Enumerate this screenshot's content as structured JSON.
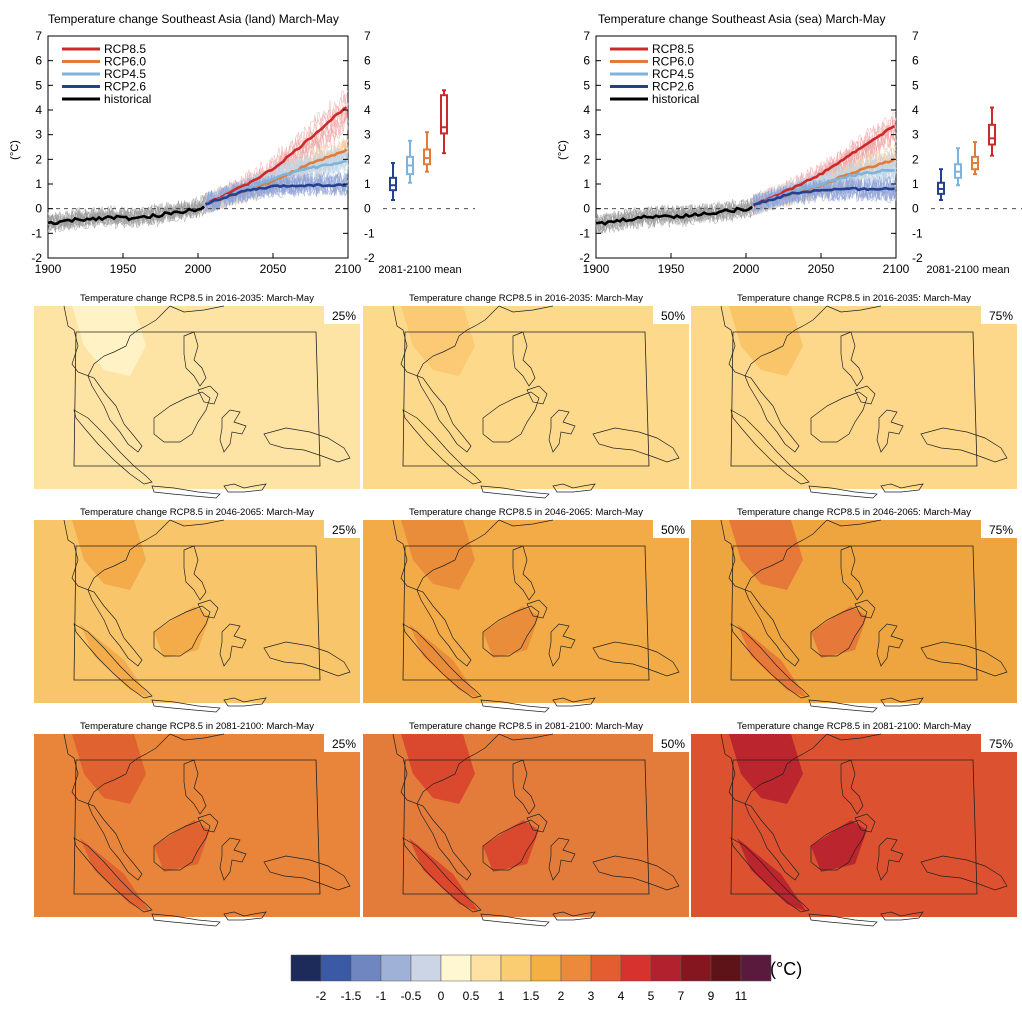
{
  "charts": [
    {
      "id": "land",
      "title": "Temperature change Southeast Asia (land) March-May",
      "ylabel": "(°C)",
      "x_ticks": [
        "1900",
        "1950",
        "2000",
        "2050",
        "2100"
      ],
      "y_ticks": [
        "-2",
        "-1",
        "0",
        "1",
        "2",
        "3",
        "4",
        "5",
        "6",
        "7"
      ],
      "box_label": "2081-2100 mean"
    },
    {
      "id": "sea",
      "title": "Temperature change Southeast Asia (sea) March-May",
      "ylabel": "(°C)",
      "x_ticks": [
        "1900",
        "1950",
        "2000",
        "2050",
        "2100"
      ],
      "y_ticks": [
        "-2",
        "-1",
        "0",
        "1",
        "2",
        "3",
        "4",
        "5",
        "6",
        "7"
      ],
      "box_label": "2081-2100 mean"
    }
  ],
  "legend": [
    {
      "label": "RCP8.5",
      "color": "#cc2a2a"
    },
    {
      "label": "RCP6.0",
      "color": "#e07b39"
    },
    {
      "label": "RCP4.5",
      "color": "#7fb3dc"
    },
    {
      "label": "RCP2.6",
      "color": "#25408f"
    },
    {
      "label": "historical",
      "color": "#000000"
    }
  ],
  "chart_data": [
    {
      "type": "line",
      "title": "Temperature change Southeast Asia (land) March-May",
      "ylabel": "(°C)",
      "xlim": [
        1900,
        2100
      ],
      "ylim": [
        -2,
        7
      ],
      "series": [
        {
          "name": "historical",
          "x": [
            1900,
            1920,
            1940,
            1960,
            1980,
            2000,
            2005
          ],
          "values": [
            -0.6,
            -0.45,
            -0.35,
            -0.4,
            -0.2,
            0.0,
            0.15
          ]
        },
        {
          "name": "RCP8.5",
          "x": [
            2005,
            2030,
            2050,
            2070,
            2100
          ],
          "values": [
            0.2,
            0.9,
            1.6,
            2.6,
            4.2
          ]
        },
        {
          "name": "RCP6.0",
          "x": [
            2005,
            2030,
            2050,
            2070,
            2100
          ],
          "values": [
            0.2,
            0.7,
            1.1,
            1.7,
            2.4
          ]
        },
        {
          "name": "RCP4.5",
          "x": [
            2005,
            2030,
            2050,
            2070,
            2100
          ],
          "values": [
            0.2,
            0.75,
            1.2,
            1.6,
            1.9
          ]
        },
        {
          "name": "RCP2.6",
          "x": [
            2005,
            2030,
            2050,
            2070,
            2100
          ],
          "values": [
            0.2,
            0.7,
            0.9,
            0.95,
            0.95
          ]
        }
      ],
      "boxes": [
        {
          "name": "RCP2.6",
          "min": 0.35,
          "q1": 0.75,
          "median": 0.95,
          "q3": 1.25,
          "max": 1.85
        },
        {
          "name": "RCP4.5",
          "min": 1.05,
          "q1": 1.4,
          "median": 1.75,
          "q3": 2.1,
          "max": 2.75
        },
        {
          "name": "RCP6.0",
          "min": 1.5,
          "q1": 1.8,
          "median": 2.05,
          "q3": 2.4,
          "max": 3.1
        },
        {
          "name": "RCP8.5",
          "min": 2.25,
          "q1": 3.05,
          "median": 3.3,
          "q3": 4.6,
          "max": 4.8
        }
      ]
    },
    {
      "type": "line",
      "title": "Temperature change Southeast Asia (sea) March-May",
      "ylabel": "(°C)",
      "xlim": [
        1900,
        2100
      ],
      "ylim": [
        -2,
        7
      ],
      "series": [
        {
          "name": "historical",
          "x": [
            1900,
            1920,
            1940,
            1960,
            1980,
            2000,
            2005
          ],
          "values": [
            -0.65,
            -0.45,
            -0.3,
            -0.3,
            -0.15,
            0.0,
            0.1
          ]
        },
        {
          "name": "RCP8.5",
          "x": [
            2005,
            2030,
            2050,
            2070,
            2100
          ],
          "values": [
            0.15,
            0.8,
            1.4,
            2.2,
            3.4
          ]
        },
        {
          "name": "RCP6.0",
          "x": [
            2005,
            2030,
            2050,
            2070,
            2100
          ],
          "values": [
            0.15,
            0.6,
            0.95,
            1.45,
            2.0
          ]
        },
        {
          "name": "RCP4.5",
          "x": [
            2005,
            2030,
            2050,
            2070,
            2100
          ],
          "values": [
            0.15,
            0.65,
            1.0,
            1.35,
            1.6
          ]
        },
        {
          "name": "RCP2.6",
          "x": [
            2005,
            2030,
            2050,
            2070,
            2100
          ],
          "values": [
            0.15,
            0.6,
            0.75,
            0.8,
            0.8
          ]
        }
      ],
      "boxes": [
        {
          "name": "RCP2.6",
          "min": 0.35,
          "q1": 0.6,
          "median": 0.8,
          "q3": 1.05,
          "max": 1.6
        },
        {
          "name": "RCP4.5",
          "min": 0.95,
          "q1": 1.25,
          "median": 1.5,
          "q3": 1.8,
          "max": 2.45
        },
        {
          "name": "RCP6.0",
          "min": 1.4,
          "q1": 1.6,
          "median": 1.85,
          "q3": 2.1,
          "max": 2.7
        },
        {
          "name": "RCP8.5",
          "min": 2.15,
          "q1": 2.6,
          "median": 2.85,
          "q3": 3.4,
          "max": 4.1
        }
      ]
    }
  ],
  "maps": [
    {
      "title": "Temperature change RCP8.5 in 2016-2035: March-May",
      "pct": "25%",
      "base": "#fde4a5",
      "patch": "#fff3c8"
    },
    {
      "title": "Temperature change RCP8.5 in 2016-2035: March-May",
      "pct": "50%",
      "base": "#fdd98c",
      "patch": "#fcc872"
    },
    {
      "title": "Temperature change RCP8.5 in 2016-2035: March-May",
      "pct": "75%",
      "base": "#fdd78a",
      "patch": "#f9c265"
    },
    {
      "title": "Temperature change RCP8.5 in 2046-2065: March-May",
      "pct": "25%",
      "base": "#f9c56a",
      "patch": "#f2a846"
    },
    {
      "title": "Temperature change RCP8.5 in 2046-2065: March-May",
      "pct": "50%",
      "base": "#f2ab46",
      "patch": "#e88a3a"
    },
    {
      "title": "Temperature change RCP8.5 in 2046-2065: March-May",
      "pct": "75%",
      "base": "#efa53f",
      "patch": "#e4743a"
    },
    {
      "title": "Temperature change RCP8.5 in 2081-2100: March-May",
      "pct": "25%",
      "base": "#e8853a",
      "patch": "#df5e30"
    },
    {
      "title": "Temperature change RCP8.5 in 2081-2100: March-May",
      "pct": "50%",
      "base": "#e37c3b",
      "patch": "#d8442e"
    },
    {
      "title": "Temperature change RCP8.5 in 2081-2100: March-May",
      "pct": "75%",
      "base": "#dc5230",
      "patch": "#b7202d"
    }
  ],
  "colorbar": {
    "unit": "(°C)",
    "colors": [
      "#1c2b5a",
      "#3a5aa6",
      "#6f86c0",
      "#9fb1d6",
      "#ccd5e6",
      "#fff6d2",
      "#fde2a3",
      "#fbcd72",
      "#f4b044",
      "#ec8a3b",
      "#e35d30",
      "#d8322e",
      "#b2212e",
      "#85161f",
      "#5e1318",
      "#5a1a3e"
    ],
    "labels": [
      "-2",
      "-1.5",
      "-1",
      "-0.5",
      "0",
      "0.5",
      "1",
      "1.5",
      "2",
      "3",
      "4",
      "5",
      "7",
      "9",
      "11"
    ]
  }
}
